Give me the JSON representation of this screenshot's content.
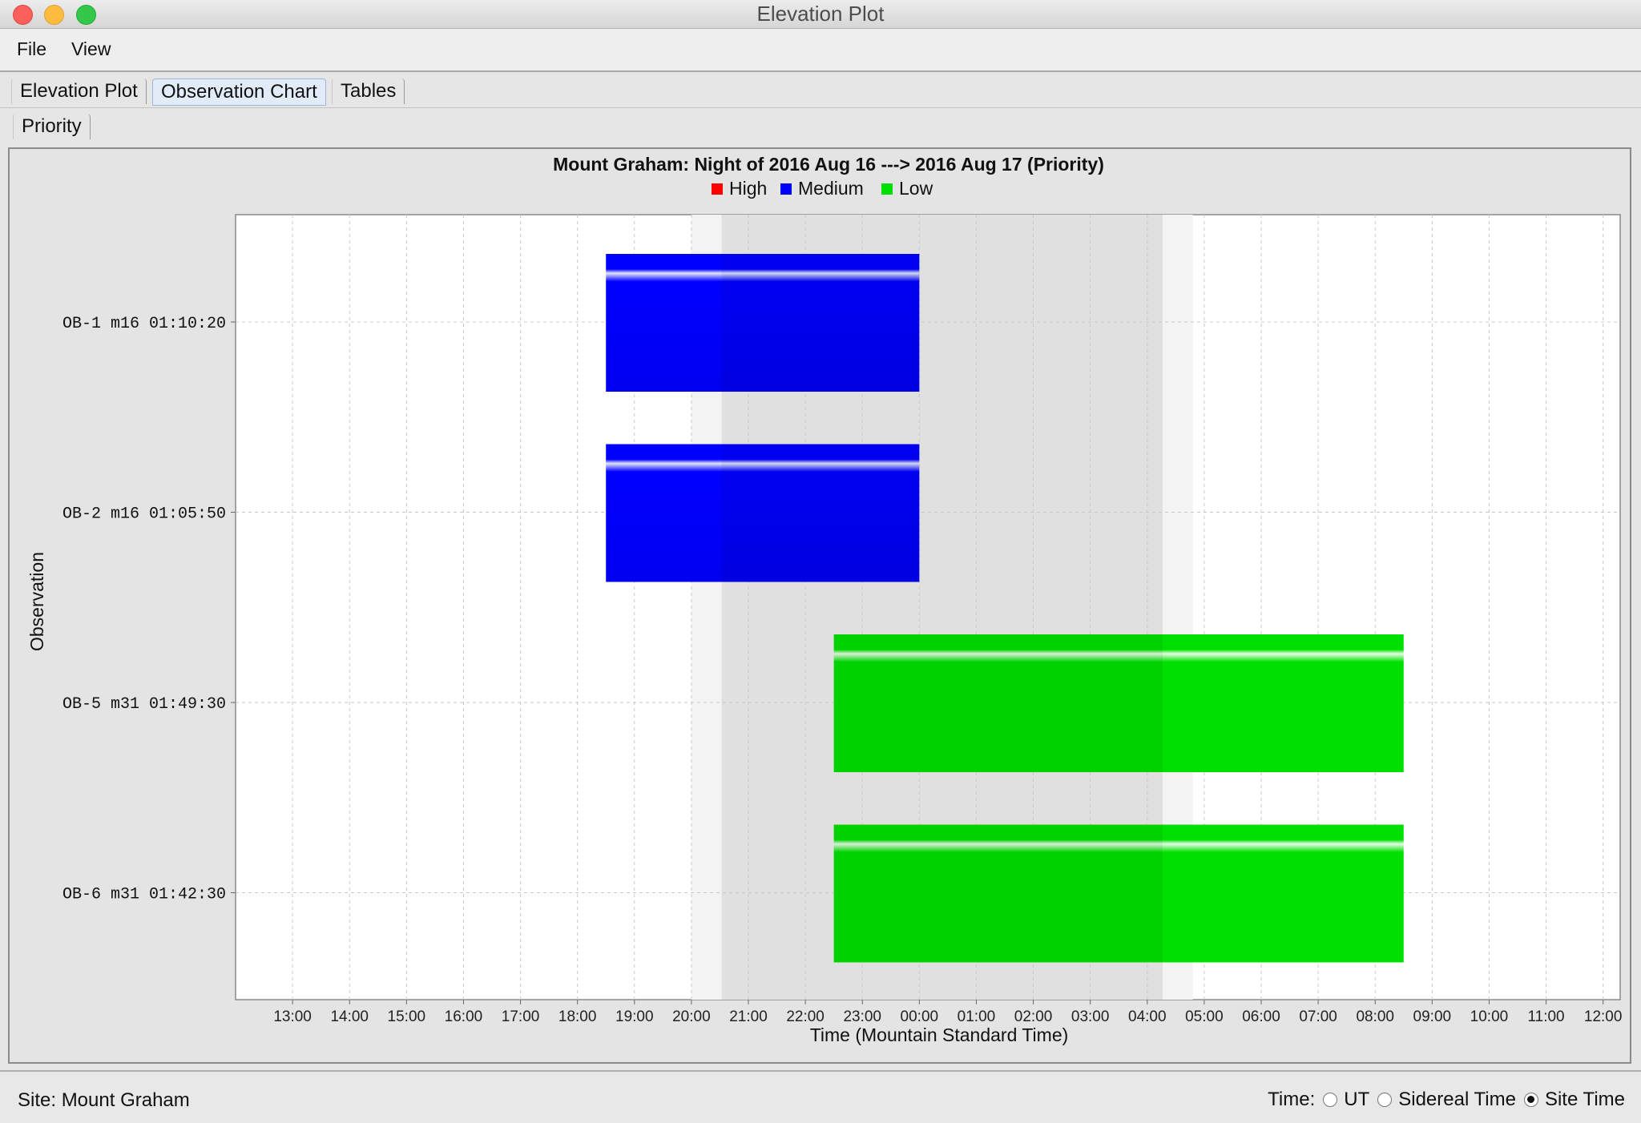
{
  "window": {
    "title": "Elevation Plot"
  },
  "menu": {
    "file": "File",
    "view": "View"
  },
  "tabs": {
    "main": [
      {
        "label": "Elevation Plot",
        "selected": false
      },
      {
        "label": "Observation Chart",
        "selected": true
      },
      {
        "label": "Tables",
        "selected": false
      }
    ],
    "sub": [
      {
        "label": "Priority",
        "selected": true
      }
    ]
  },
  "status": {
    "site": "Site: Mount Graham",
    "time_label": "Time:",
    "options": [
      {
        "label": "UT",
        "checked": false
      },
      {
        "label": "Sidereal Time",
        "checked": false
      },
      {
        "label": "Site Time",
        "checked": true
      }
    ]
  },
  "colors": {
    "high": "#ff0000",
    "medium": "#0000ff",
    "low": "#00e000",
    "twilight": "#f3f3f3",
    "night": "#e0e0e0"
  },
  "chart_data": {
    "type": "gantt",
    "title": "Mount Graham: Night of 2016 Aug 16 ---> 2016 Aug 17 (Priority)",
    "xlabel": "Time (Mountain Standard Time)",
    "ylabel": "Observation",
    "legend": [
      {
        "name": "High",
        "color": "#ff0000"
      },
      {
        "name": "Medium",
        "color": "#0000ff"
      },
      {
        "name": "Low",
        "color": "#00e000"
      }
    ],
    "legend_position": "top-center",
    "x_ticks": [
      "13:00",
      "14:00",
      "15:00",
      "16:00",
      "17:00",
      "18:00",
      "19:00",
      "20:00",
      "21:00",
      "22:00",
      "23:00",
      "00:00",
      "01:00",
      "02:00",
      "03:00",
      "04:00",
      "05:00",
      "06:00",
      "07:00",
      "08:00",
      "09:00",
      "10:00",
      "11:00",
      "12:00"
    ],
    "x_tick_values": [
      13,
      14,
      15,
      16,
      17,
      18,
      19,
      20,
      21,
      22,
      23,
      24,
      25,
      26,
      27,
      28,
      29,
      30,
      31,
      32,
      33,
      34,
      35,
      36
    ],
    "x_range": [
      12.0,
      36.3
    ],
    "shading": {
      "twilight": [
        [
          20.0,
          20.53
        ],
        [
          28.27,
          28.8
        ]
      ],
      "night": [
        20.53,
        28.27
      ]
    },
    "categories": [
      "OB-1 m16 01:10:20",
      "OB-2 m16 01:05:50",
      "OB-5 m31 01:49:30",
      "OB-6 m31 01:42:30"
    ],
    "bars": [
      {
        "label": "OB-1 m16 01:10:20",
        "start": 18.5,
        "end": 24.0,
        "priority": "Medium"
      },
      {
        "label": "OB-2 m16 01:05:50",
        "start": 18.5,
        "end": 24.0,
        "priority": "Medium"
      },
      {
        "label": "OB-5 m31 01:49:30",
        "start": 22.5,
        "end": 32.5,
        "priority": "Low"
      },
      {
        "label": "OB-6 m31 01:42:30",
        "start": 22.5,
        "end": 32.5,
        "priority": "Low"
      }
    ],
    "grid": true
  }
}
